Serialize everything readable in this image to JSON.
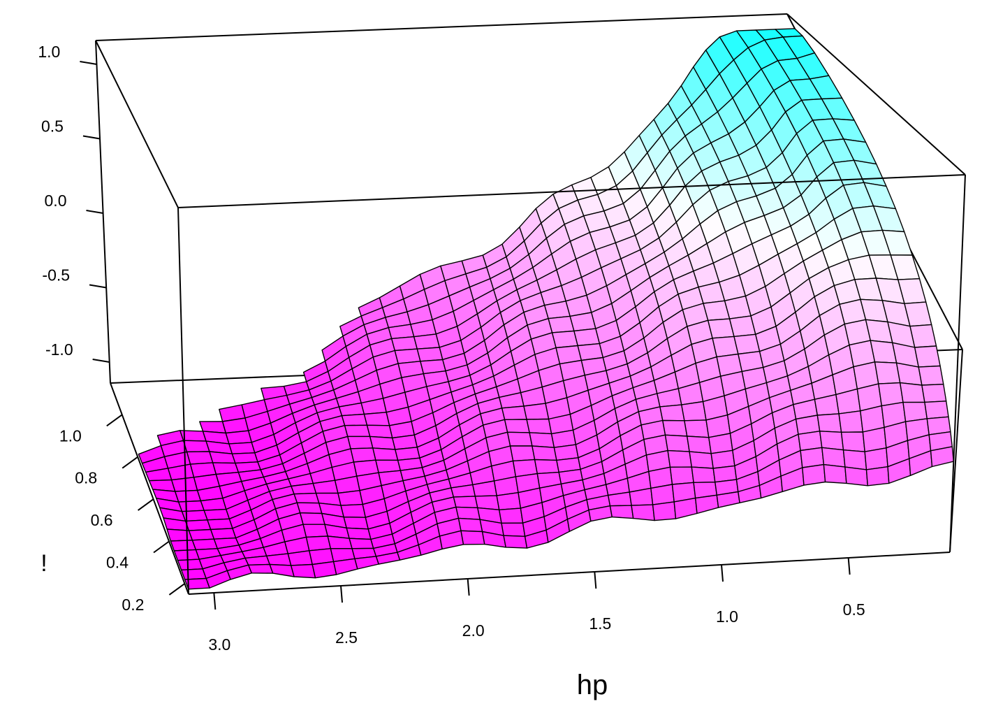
{
  "chart_data": {
    "type": "surface",
    "xlabel": "hp",
    "ylabel": "!",
    "zlabel": "",
    "xlim": [
      0.1,
      3.1
    ],
    "ylim": [
      0.15,
      1.15
    ],
    "zlim": [
      -1.15,
      1.15
    ],
    "x_ticks": [
      "3.0",
      "2.5",
      "2.0",
      "1.5",
      "1.0",
      "0.5"
    ],
    "x_tick_values": [
      3.0,
      2.5,
      2.0,
      1.5,
      1.0,
      0.5
    ],
    "y_ticks": [
      "0.2",
      "0.4",
      "0.6",
      "0.8",
      "1.0"
    ],
    "y_tick_values": [
      0.2,
      0.4,
      0.6,
      0.8,
      1.0
    ],
    "z_ticks": [
      "-1.0",
      "-0.5",
      "0.0",
      "0.5",
      "1.0"
    ],
    "z_tick_values": [
      -1.0,
      -0.5,
      0.0,
      0.5,
      1.0
    ],
    "grid": {
      "hp_min": 0.1,
      "hp_max": 3.1,
      "hp_steps": 36,
      "w_min": 0.15,
      "w_max": 1.15,
      "w_steps": 22
    },
    "surface_description": "z rises from about -1.1 near (hp 3.0, ! 0.2) toward about 1.0 near (hp 0.3, ! 1.0); defined region bounded by hp * ! <= about 2.4",
    "colors": {
      "low": "#ff00ff",
      "mid": "#ffffff",
      "high": "#00ffff"
    },
    "grid_on": false,
    "legend": "none"
  }
}
